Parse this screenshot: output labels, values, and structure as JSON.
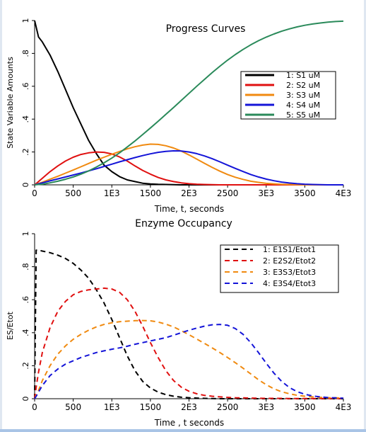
{
  "chart_data": [
    {
      "type": "line",
      "title": "Progress Curves",
      "xlabel": "Time, t, seconds",
      "ylabel": "State Variable Amounts",
      "xlim": [
        0,
        4000
      ],
      "ylim": [
        0,
        1
      ],
      "x_ticks": [
        "0",
        "500",
        "1E3",
        "1500",
        "2E3",
        "2500",
        "3E3",
        "3500",
        "4E3"
      ],
      "y_ticks": [
        "0",
        ".2",
        ".4",
        ".6",
        ".8",
        "1"
      ],
      "legend_position": "right",
      "line_style": "solid",
      "x": [
        0,
        50,
        100,
        200,
        300,
        400,
        500,
        600,
        700,
        800,
        900,
        1000,
        1100,
        1200,
        1300,
        1400,
        1500,
        1600,
        1700,
        1800,
        1900,
        2000,
        2100,
        2200,
        2300,
        2400,
        2500,
        2600,
        2700,
        2800,
        2900,
        3000,
        3100,
        3200,
        3300,
        3400,
        3500,
        3600,
        3700,
        3800,
        3900,
        4000
      ],
      "series": [
        {
          "name": "1:  S1  uM",
          "color": "#000000",
          "values": [
            1.0,
            0.9,
            0.87,
            0.79,
            0.69,
            0.58,
            0.47,
            0.37,
            0.27,
            0.19,
            0.12,
            0.08,
            0.05,
            0.03,
            0.02,
            0.01,
            0.005,
            0.003,
            0.002,
            0.001,
            0.0,
            0.0,
            0.0,
            0.0,
            0.0,
            0.0,
            0.0,
            0.0,
            0.0,
            0.0,
            0.0,
            0.0,
            0.0,
            0.0,
            0.0,
            0.0,
            0.0,
            0.0,
            0.0,
            0.0,
            0.0,
            0.0
          ]
        },
        {
          "name": "2:  S2  uM",
          "color": "#e01010",
          "values": [
            0.0,
            0.02,
            0.04,
            0.08,
            0.115,
            0.145,
            0.168,
            0.185,
            0.195,
            0.2,
            0.198,
            0.188,
            0.17,
            0.145,
            0.115,
            0.088,
            0.065,
            0.045,
            0.03,
            0.02,
            0.012,
            0.007,
            0.004,
            0.002,
            0.001,
            0.0,
            0.0,
            0.0,
            0.0,
            0.0,
            0.0,
            0.0,
            0.0,
            0.0,
            0.0,
            0.0,
            0.0,
            0.0,
            0.0,
            0.0,
            0.0,
            0.0
          ]
        },
        {
          "name": "3:  S3  uM",
          "color": "#f08a10",
          "values": [
            0.0,
            0.008,
            0.016,
            0.034,
            0.052,
            0.071,
            0.09,
            0.11,
            0.13,
            0.15,
            0.168,
            0.186,
            0.203,
            0.219,
            0.232,
            0.242,
            0.248,
            0.246,
            0.238,
            0.224,
            0.205,
            0.182,
            0.157,
            0.131,
            0.106,
            0.083,
            0.063,
            0.046,
            0.033,
            0.022,
            0.015,
            0.009,
            0.006,
            0.003,
            0.002,
            0.001,
            0.0,
            0.0,
            0.0,
            0.0,
            0.0,
            0.0
          ]
        },
        {
          "name": "4:  S4  uM",
          "color": "#1414d8",
          "values": [
            0.0,
            0.006,
            0.012,
            0.024,
            0.036,
            0.048,
            0.06,
            0.072,
            0.085,
            0.098,
            0.112,
            0.126,
            0.14,
            0.153,
            0.166,
            0.178,
            0.189,
            0.198,
            0.204,
            0.207,
            0.206,
            0.2,
            0.19,
            0.176,
            0.159,
            0.14,
            0.12,
            0.1,
            0.081,
            0.063,
            0.048,
            0.035,
            0.025,
            0.017,
            0.011,
            0.007,
            0.004,
            0.002,
            0.001,
            0.0,
            0.0,
            0.0
          ]
        },
        {
          "name": "5:  S5  uM",
          "color": "#2a8a5a",
          "values": [
            0.0,
            0.002,
            0.004,
            0.012,
            0.022,
            0.034,
            0.048,
            0.065,
            0.085,
            0.108,
            0.134,
            0.163,
            0.195,
            0.23,
            0.267,
            0.306,
            0.346,
            0.387,
            0.429,
            0.471,
            0.514,
            0.557,
            0.6,
            0.642,
            0.683,
            0.722,
            0.759,
            0.793,
            0.824,
            0.852,
            0.877,
            0.899,
            0.918,
            0.935,
            0.949,
            0.961,
            0.971,
            0.979,
            0.985,
            0.99,
            0.994,
            0.996
          ]
        }
      ]
    },
    {
      "type": "line",
      "title": "Enzyme Occupancy",
      "xlabel": "Time , t seconds",
      "ylabel": "ES/Etot",
      "xlim": [
        0,
        4000
      ],
      "ylim": [
        0,
        1
      ],
      "x_ticks": [
        "0",
        "500",
        "1E3",
        "1500",
        "2E3",
        "2500",
        "3E3",
        "3500",
        "4E3"
      ],
      "y_ticks": [
        "0",
        ".2",
        ".4",
        ".6",
        ".8",
        "1"
      ],
      "legend_position": "top-right",
      "line_style": "dashed",
      "x": [
        0,
        20,
        50,
        100,
        200,
        300,
        400,
        500,
        600,
        700,
        800,
        900,
        1000,
        1100,
        1200,
        1300,
        1400,
        1500,
        1600,
        1700,
        1800,
        1900,
        2000,
        2100,
        2200,
        2300,
        2400,
        2500,
        2600,
        2700,
        2800,
        2900,
        3000,
        3100,
        3200,
        3300,
        3400,
        3500,
        3600,
        3700,
        3800,
        3900,
        4000
      ],
      "series": [
        {
          "name": "1:  E1S1/Etot1",
          "color": "#000000",
          "values": [
            0.0,
            0.9,
            0.9,
            0.895,
            0.885,
            0.87,
            0.85,
            0.82,
            0.78,
            0.73,
            0.66,
            0.58,
            0.48,
            0.37,
            0.26,
            0.17,
            0.105,
            0.065,
            0.04,
            0.025,
            0.015,
            0.009,
            0.006,
            0.004,
            0.002,
            0.001,
            0.0,
            0.0,
            0.0,
            0.0,
            0.0,
            0.0,
            0.0,
            0.0,
            0.0,
            0.0,
            0.0,
            0.0,
            0.0,
            0.0,
            0.0,
            0.0,
            0.0
          ]
        },
        {
          "name": "2:  E2S2/Etot2",
          "color": "#e01010",
          "values": [
            0.0,
            0.07,
            0.16,
            0.28,
            0.43,
            0.53,
            0.59,
            0.63,
            0.65,
            0.66,
            0.665,
            0.67,
            0.665,
            0.645,
            0.6,
            0.53,
            0.44,
            0.34,
            0.25,
            0.17,
            0.11,
            0.07,
            0.045,
            0.03,
            0.02,
            0.015,
            0.011,
            0.008,
            0.006,
            0.005,
            0.004,
            0.003,
            0.002,
            0.002,
            0.002,
            0.001,
            0.001,
            0.001,
            0.001,
            0.001,
            0.001,
            0.001,
            0.001
          ]
        },
        {
          "name": "3:  E3S3/Etot3",
          "color": "#f08a10",
          "values": [
            0.0,
            0.02,
            0.05,
            0.11,
            0.2,
            0.27,
            0.32,
            0.36,
            0.39,
            0.415,
            0.435,
            0.45,
            0.46,
            0.467,
            0.47,
            0.473,
            0.474,
            0.472,
            0.465,
            0.452,
            0.435,
            0.412,
            0.388,
            0.362,
            0.335,
            0.308,
            0.28,
            0.25,
            0.218,
            0.185,
            0.15,
            0.115,
            0.085,
            0.06,
            0.042,
            0.03,
            0.021,
            0.015,
            0.011,
            0.008,
            0.006,
            0.005,
            0.004
          ]
        },
        {
          "name": "4:  E3S4/Etot3",
          "color": "#1414d8",
          "values": [
            0.0,
            0.015,
            0.04,
            0.08,
            0.14,
            0.18,
            0.21,
            0.23,
            0.25,
            0.265,
            0.28,
            0.29,
            0.3,
            0.308,
            0.318,
            0.33,
            0.34,
            0.35,
            0.36,
            0.37,
            0.385,
            0.4,
            0.415,
            0.428,
            0.44,
            0.448,
            0.45,
            0.445,
            0.425,
            0.39,
            0.34,
            0.28,
            0.215,
            0.155,
            0.105,
            0.068,
            0.043,
            0.027,
            0.017,
            0.011,
            0.007,
            0.005,
            0.003
          ]
        }
      ]
    }
  ]
}
